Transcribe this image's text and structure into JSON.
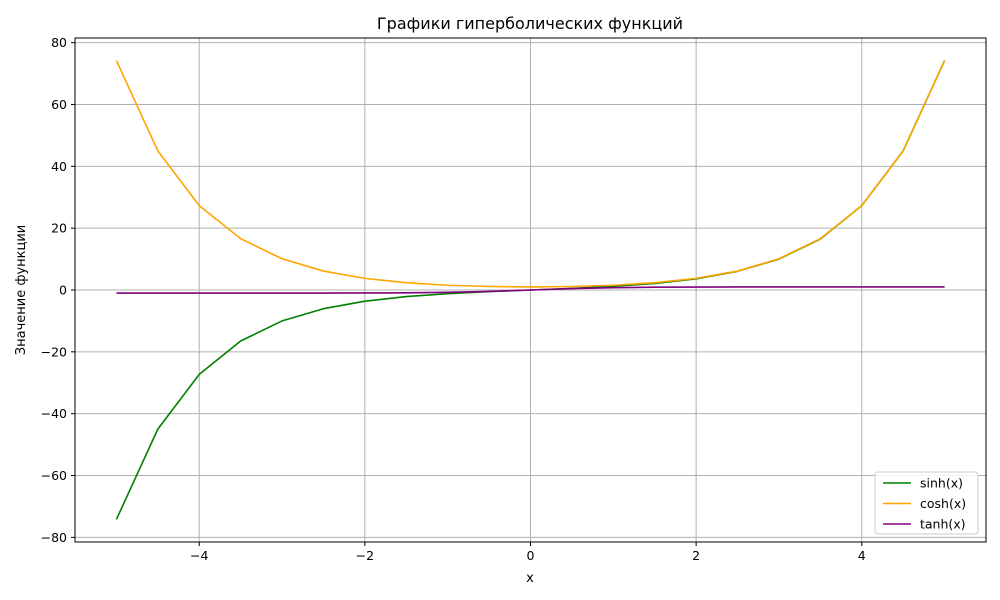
{
  "chart_data": {
    "type": "line",
    "title": "Графики гиперболических функций",
    "xlabel": "x",
    "ylabel": "Значение функции",
    "xlim": [
      -5.5,
      5.5
    ],
    "ylim": [
      -81.5,
      81.5
    ],
    "x_ticks": [
      -4,
      -2,
      0,
      2,
      4
    ],
    "x_tick_labels": [
      "−4",
      "−2",
      "0",
      "2",
      "4"
    ],
    "y_ticks": [
      -80,
      -60,
      -40,
      -20,
      0,
      20,
      40,
      60,
      80
    ],
    "y_tick_labels": [
      "−80",
      "−60",
      "−40",
      "−20",
      "0",
      "20",
      "40",
      "60",
      "80"
    ],
    "grid": true,
    "legend_position": "bottom-right",
    "x": [
      -5,
      -4.5,
      -4,
      -3.5,
      -3,
      -2.5,
      -2,
      -1.5,
      -1,
      -0.5,
      0,
      0.5,
      1,
      1.5,
      2,
      2.5,
      3,
      3.5,
      4,
      4.5,
      5
    ],
    "series": [
      {
        "name": "sinh(x)",
        "color": "#008000",
        "values": [
          -74.2,
          -45.0,
          -27.3,
          -16.5,
          -10.0,
          -6.05,
          -3.63,
          -2.13,
          -1.18,
          -0.52,
          0,
          0.52,
          1.18,
          2.13,
          3.63,
          6.05,
          10.0,
          16.5,
          27.3,
          45.0,
          74.2
        ]
      },
      {
        "name": "cosh(x)",
        "color": "#ffa500",
        "values": [
          74.2,
          45.0,
          27.3,
          16.6,
          10.1,
          6.13,
          3.76,
          2.35,
          1.54,
          1.13,
          1.0,
          1.13,
          1.54,
          2.35,
          3.76,
          6.13,
          10.1,
          16.6,
          27.3,
          45.0,
          74.2
        ]
      },
      {
        "name": "tanh(x)",
        "color": "#800080",
        "values": [
          -1.0,
          -1.0,
          -1.0,
          -1.0,
          -0.995,
          -0.987,
          -0.964,
          -0.905,
          -0.762,
          -0.462,
          0,
          0.462,
          0.762,
          0.905,
          0.964,
          0.987,
          0.995,
          1.0,
          1.0,
          1.0,
          1.0
        ]
      }
    ]
  }
}
